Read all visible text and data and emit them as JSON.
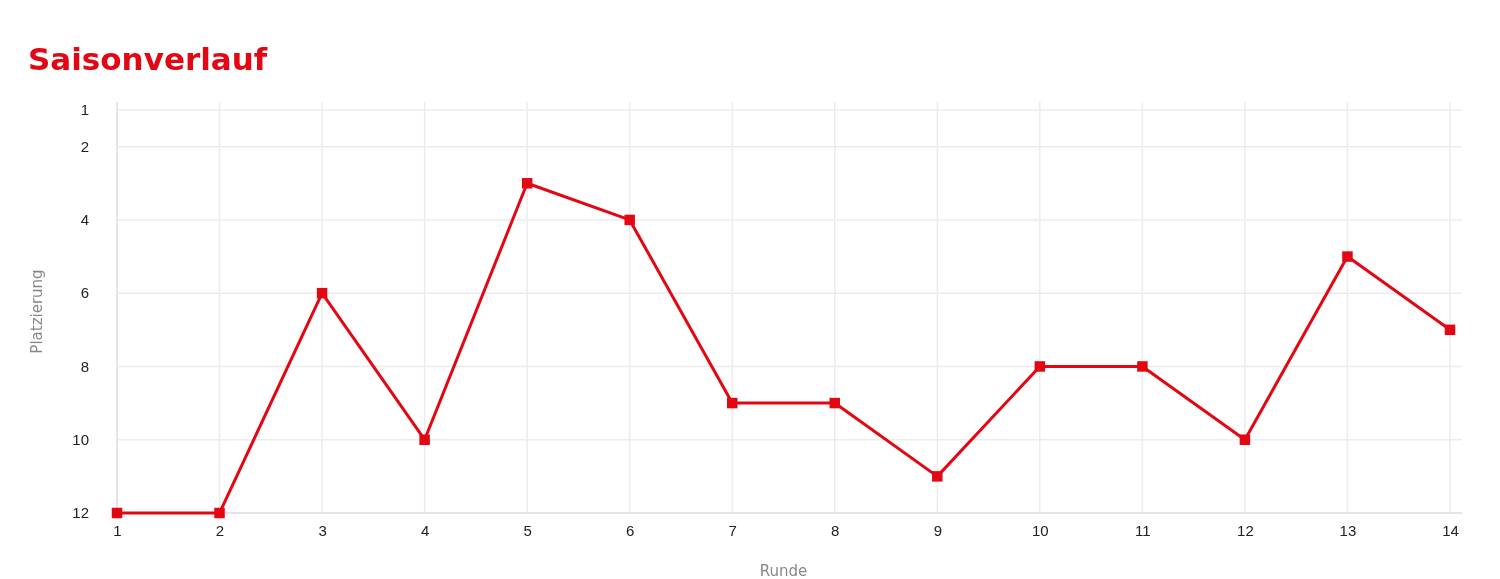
{
  "chart_data": {
    "type": "line",
    "title": "Saisonverlauf",
    "xlabel": "Runde",
    "ylabel": "Platzierung",
    "x": [
      1,
      2,
      3,
      4,
      5,
      6,
      7,
      8,
      9,
      10,
      11,
      12,
      13,
      14
    ],
    "series": [
      {
        "color": "#e30613",
        "values": [
          12,
          12,
          6,
          10,
          3,
          4,
          9,
          9,
          11,
          8,
          8,
          10,
          5,
          7
        ]
      }
    ],
    "xlim": [
      1,
      14
    ],
    "xticks": [
      1,
      2,
      3,
      4,
      5,
      6,
      7,
      8,
      9,
      10,
      11,
      12,
      13,
      14
    ],
    "ylim": [
      12,
      1
    ],
    "yticks": [
      1,
      2,
      4,
      6,
      8,
      10,
      12
    ],
    "grid": true,
    "marker": "square",
    "line_style": "solid"
  }
}
